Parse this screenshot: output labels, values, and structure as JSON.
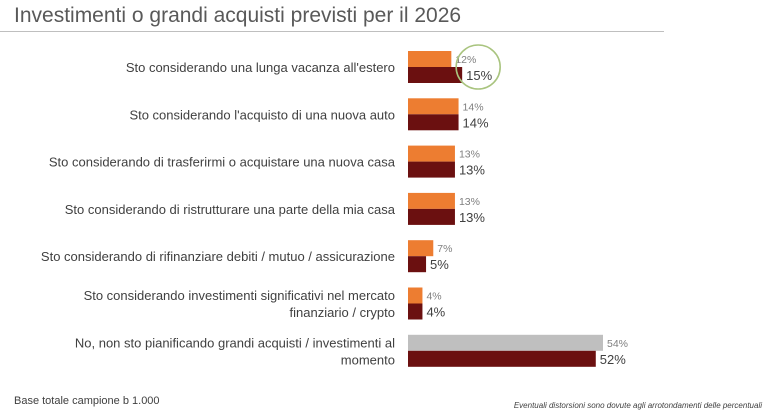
{
  "page": {
    "title": "Investimenti o grandi acquisti previsti per il 2026",
    "base_note": "Base totale campione b 1.000",
    "disclaimer": "Eventuali distorsioni sono dovute agli arrotondamenti delle percentuali"
  },
  "colors": {
    "series_a": "#ed7d31",
    "series_b": "#6b1010",
    "series_a_last": "#bfbfbf",
    "highlight_circle": "#a9c47f",
    "category_text": "#404040",
    "label_a": "#7f7f7f",
    "label_b": "#404040"
  },
  "chart_data": {
    "type": "bar",
    "orientation": "horizontal",
    "categories": [
      [
        "Sto considerando una lunga vacanza all'estero"
      ],
      [
        "Sto considerando l'acquisto di una nuova auto"
      ],
      [
        "Sto considerando di trasferirmi o acquistare una nuova casa"
      ],
      [
        "Sto considerando di ristrutturare una parte della mia casa"
      ],
      [
        "Sto considerando di rifinanziare debiti / mutuo / assicurazione"
      ],
      [
        "Sto considerando investimenti significativi nel mercato",
        "finanziario / crypto"
      ],
      [
        "No, non sto pianificando grandi acquisti / investimenti al",
        "momento"
      ]
    ],
    "series": [
      {
        "values": [
          12,
          14,
          13,
          13,
          7,
          4,
          54
        ],
        "labels": [
          "12%",
          "14%",
          "13%",
          "13%",
          "7%",
          "4%",
          "54%"
        ]
      },
      {
        "values": [
          15,
          14,
          13,
          13,
          5,
          4,
          52
        ],
        "labels": [
          "15%",
          "14%",
          "13%",
          "13%",
          "5%",
          "4%",
          "52%"
        ]
      }
    ],
    "highlight_category_index": 0,
    "xlim": [
      0,
      54
    ],
    "grid": false,
    "legend": "none"
  }
}
